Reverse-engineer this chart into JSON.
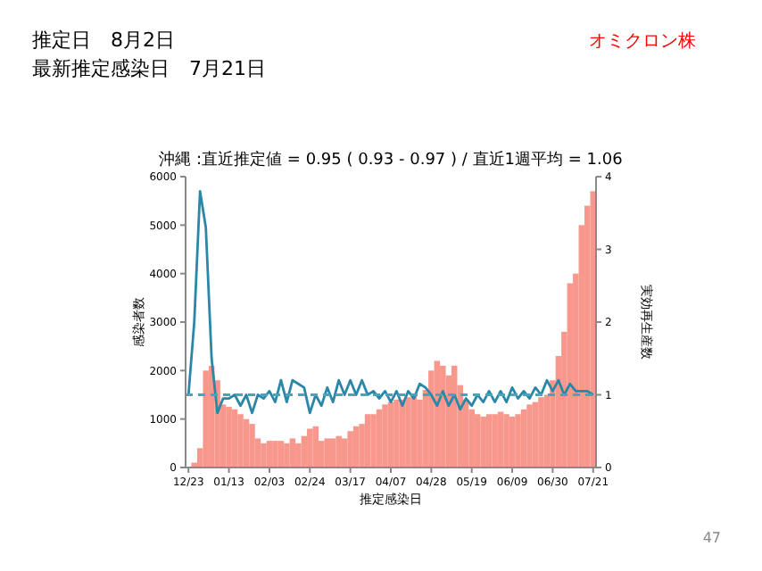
{
  "chart_data": {
    "type": "bar",
    "title": "沖縄 :直近推定値 = 0.95 ( 0.93 - 0.97 ) / 直近1週平均 = 1.06",
    "xlabel": "推定感染日",
    "ylabel": "感染者数",
    "y2label": "実効再生産数",
    "annotations": [
      "推定日　8月2日",
      "最新推定感染日　7月21日",
      "オミクロン株",
      "47"
    ],
    "categories": [
      "12/23",
      null,
      null,
      null,
      null,
      null,
      null,
      "01/13",
      null,
      null,
      null,
      null,
      null,
      null,
      "02/03",
      null,
      null,
      null,
      null,
      null,
      null,
      "02/24",
      null,
      null,
      null,
      null,
      null,
      null,
      "03/17",
      null,
      null,
      null,
      null,
      null,
      null,
      "04/07",
      null,
      null,
      null,
      null,
      null,
      null,
      "04/28",
      null,
      null,
      null,
      null,
      null,
      null,
      "05/19",
      null,
      null,
      null,
      null,
      null,
      null,
      "06/09",
      null,
      null,
      null,
      null,
      null,
      null,
      "06/30",
      null,
      null,
      null,
      null,
      null,
      null,
      "07/21"
    ],
    "ylim": [
      0,
      6000
    ],
    "yticks": [
      0,
      1000,
      2000,
      3000,
      4000,
      5000,
      6000
    ],
    "y2lim": [
      0,
      4
    ],
    "y2ticks": [
      0,
      1,
      2,
      3,
      4
    ],
    "ref_lines": [
      {
        "axis": "y2",
        "value": 1,
        "color": "#4aa3b8",
        "line_style": "dashed"
      }
    ],
    "series": [
      {
        "color": "#f8978c",
        "values": [
          0,
          100,
          400,
          2000,
          2100,
          1800,
          1300,
          1250,
          1200,
          1100,
          1000,
          900,
          600,
          500,
          550,
          550,
          550,
          500,
          600,
          500,
          650,
          800,
          850,
          550,
          600,
          600,
          650,
          600,
          750,
          850,
          900,
          1100,
          1100,
          1200,
          1300,
          1350,
          1400,
          1400,
          1450,
          1500,
          1400,
          1600,
          2000,
          2200,
          2100,
          1900,
          2100,
          1700,
          1400,
          1200,
          1100,
          1050,
          1100,
          1100,
          1150,
          1100,
          1050,
          1100,
          1200,
          1300,
          1350,
          1450,
          1500,
          1800,
          2300,
          2800,
          3800,
          4000,
          5000,
          5400,
          5700
        ]
      },
      {
        "type": "line",
        "axis": "y2",
        "color": "#2a87a8",
        "values": [
          1.0,
          2.0,
          3.8,
          3.3,
          1.5,
          0.75,
          0.95,
          0.95,
          1.0,
          0.85,
          1.0,
          0.75,
          1.0,
          0.95,
          1.05,
          0.9,
          1.2,
          0.9,
          1.2,
          1.15,
          1.1,
          0.75,
          1.0,
          0.85,
          1.1,
          0.9,
          1.2,
          1.0,
          1.2,
          1.0,
          1.2,
          1.0,
          1.05,
          0.95,
          1.05,
          0.9,
          1.05,
          0.85,
          1.05,
          0.95,
          1.15,
          1.1,
          1.0,
          0.85,
          1.05,
          0.85,
          1.0,
          0.8,
          0.95,
          0.85,
          1.0,
          0.9,
          1.05,
          0.9,
          1.05,
          0.9,
          1.1,
          0.95,
          1.05,
          0.95,
          1.1,
          1.0,
          1.2,
          1.05,
          1.2,
          1.0,
          1.15,
          1.05,
          1.05,
          1.05,
          1.0
        ]
      }
    ]
  }
}
